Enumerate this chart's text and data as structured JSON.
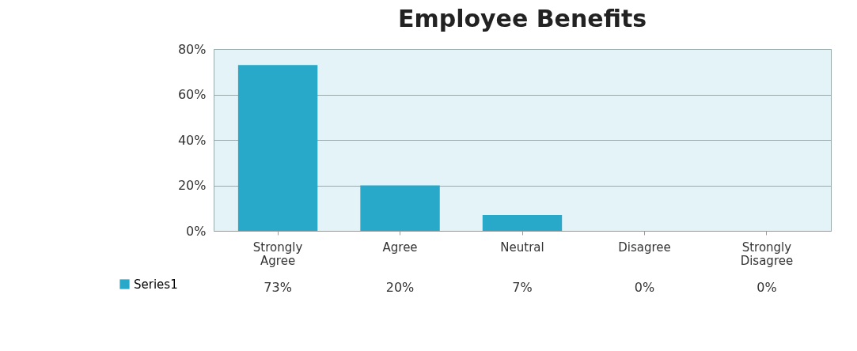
{
  "chart_data": {
    "type": "bar",
    "title": "Employee Benefits",
    "categories": [
      "Strongly Agree",
      "Agree",
      "Neutral",
      "Disagree",
      "Strongly Disagree"
    ],
    "series": [
      {
        "name": "Series1",
        "color": "#29a9c9",
        "values": [
          73,
          20,
          7,
          0,
          0
        ]
      }
    ],
    "value_labels": [
      "73%",
      "20%",
      "7%",
      "0%",
      "0%"
    ],
    "ylim": [
      0,
      80
    ],
    "yticks": [
      {
        "value": 0,
        "label": "0%"
      },
      {
        "value": 20,
        "label": "20%"
      },
      {
        "value": 40,
        "label": "40%"
      },
      {
        "value": 60,
        "label": "60%"
      },
      {
        "value": 80,
        "label": "80%"
      }
    ],
    "grid": "y",
    "legend": "bottom"
  }
}
